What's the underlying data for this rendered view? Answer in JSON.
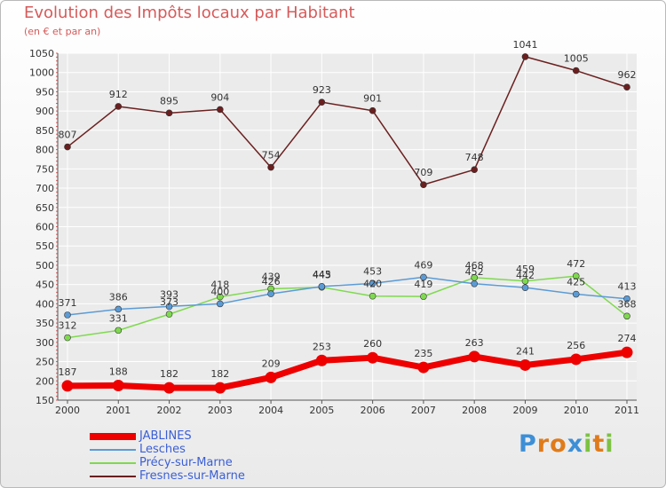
{
  "chart_data": {
    "type": "line",
    "title": "Evolution des Impôts locaux par Habitant",
    "subtitle": "(en € et par an)",
    "xlabel": "",
    "ylabel": "",
    "categories": [
      "2000",
      "2001",
      "2002",
      "2003",
      "2004",
      "2005",
      "2006",
      "2007",
      "2008",
      "2009",
      "2010",
      "2011"
    ],
    "ylim": [
      150,
      1050
    ],
    "yticks": [
      150,
      200,
      250,
      300,
      350,
      400,
      450,
      500,
      550,
      600,
      650,
      700,
      750,
      800,
      850,
      900,
      950,
      1000,
      1050
    ],
    "grid": true,
    "series": [
      {
        "name": "Fresnes-sur-Marne",
        "color": "#6b1f1f",
        "values": [
          807,
          912,
          895,
          904,
          754,
          923,
          901,
          709,
          748,
          1041,
          1005,
          962
        ]
      },
      {
        "name": "Précy-sur-Marne",
        "color": "#7fd94f",
        "values": [
          312,
          331,
          373,
          418,
          439,
          443,
          420,
          419,
          468,
          459,
          472,
          368
        ]
      },
      {
        "name": "Lesches",
        "color": "#5b9bd5",
        "values": [
          371,
          386,
          393,
          400,
          426,
          445,
          453,
          469,
          452,
          442,
          425,
          413
        ]
      },
      {
        "name": "JABLINES",
        "color": "#ee0000",
        "values": [
          187,
          188,
          182,
          182,
          209,
          253,
          260,
          235,
          263,
          241,
          256,
          274
        ]
      }
    ],
    "legend": {
      "position": "bottom-left",
      "entries": [
        {
          "name": "JABLINES",
          "color": "#ee0000",
          "thickness": "thick"
        },
        {
          "name": "Lesches",
          "color": "#5b9bd5",
          "thickness": "thin"
        },
        {
          "name": "Précy-sur-Marne",
          "color": "#7fd94f",
          "thickness": "thin"
        },
        {
          "name": "Fresnes-sur-Marne",
          "color": "#6b1f1f",
          "thickness": "thin"
        }
      ]
    }
  },
  "brand": {
    "letters": [
      "P",
      "r",
      "o",
      "x",
      "i",
      "t",
      "i"
    ],
    "colors": [
      "#3d8fd6",
      "#e07b1a",
      "#e07b1a",
      "#3d8fd6",
      "#7cc242",
      "#e07b1a",
      "#7cc242"
    ]
  }
}
